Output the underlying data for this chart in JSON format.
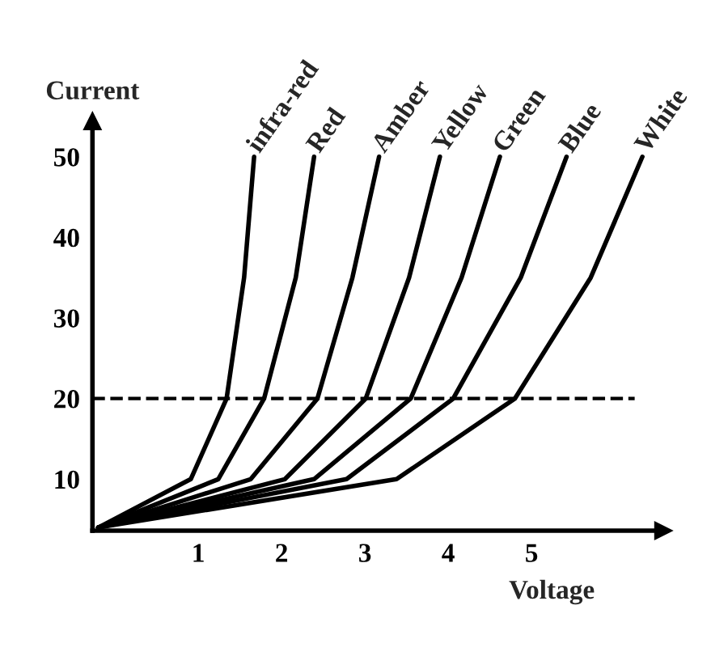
{
  "chart_data": {
    "type": "line",
    "xlabel": "Voltage",
    "ylabel": "Current",
    "xlim": [
      -0.27,
      6.58
    ],
    "ylim": [
      3.6,
      54.4
    ],
    "xticks": [
      1,
      2,
      3,
      4,
      5
    ],
    "yticks": [
      10,
      20,
      30,
      40,
      50
    ],
    "grid": false,
    "legend": false,
    "marker": "none",
    "line_style": "solid",
    "ref_lines": [
      {
        "axis": "y",
        "value": 20,
        "label": null,
        "color": "#000000",
        "line_style": "dashed"
      }
    ],
    "series": [
      {
        "name": "infra-red",
        "color": "#000000",
        "x": [
          -0.2,
          0.91,
          1.34,
          1.55,
          1.67
        ],
        "values": [
          4,
          10,
          20,
          35,
          50
        ]
      },
      {
        "name": "Red",
        "color": "#000000",
        "x": [
          -0.2,
          1.24,
          1.79,
          2.17,
          2.39
        ],
        "values": [
          4,
          10,
          20,
          35,
          50
        ]
      },
      {
        "name": "Amber",
        "color": "#000000",
        "x": [
          -0.2,
          1.63,
          2.43,
          2.85,
          3.17
        ],
        "values": [
          4,
          10,
          20,
          35,
          50
        ]
      },
      {
        "name": "Yellow",
        "color": "#000000",
        "x": [
          -0.2,
          2.04,
          3.01,
          3.53,
          3.9
        ],
        "values": [
          4,
          10,
          20,
          35,
          50
        ]
      },
      {
        "name": "Green",
        "color": "#000000",
        "x": [
          -0.2,
          2.39,
          3.55,
          4.16,
          4.62
        ],
        "values": [
          4,
          10,
          20,
          35,
          50
        ]
      },
      {
        "name": "Blue",
        "color": "#000000",
        "x": [
          -0.2,
          2.78,
          4.06,
          4.87,
          5.42
        ],
        "values": [
          4,
          10,
          20,
          35,
          50
        ]
      },
      {
        "name": "White",
        "color": "#000000",
        "x": [
          -0.2,
          3.38,
          4.8,
          5.71,
          6.33
        ],
        "values": [
          4,
          10,
          20,
          35,
          50
        ]
      }
    ]
  }
}
